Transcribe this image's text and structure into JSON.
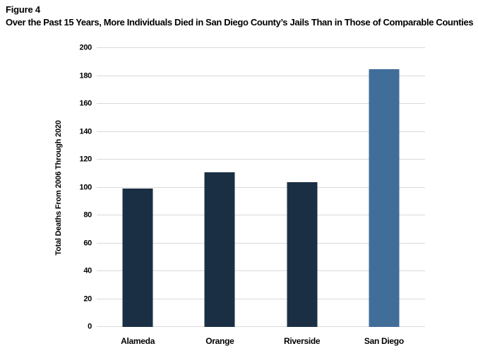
{
  "header": {
    "figure_label": "Figure 4",
    "title": "Over the Past 15 Years, More Individuals Died in San Diego County’s Jails Than in Those of Comparable Counties"
  },
  "chart_data": {
    "type": "bar",
    "categories": [
      "Alameda",
      "Orange",
      "Riverside",
      "San Diego"
    ],
    "values": [
      99,
      111,
      104,
      185
    ],
    "title": "Over the Past 15 Years, More Individuals Died in San Diego County’s Jails Than in Those of Comparable Counties",
    "xlabel": "",
    "ylabel": "Total Deaths From 2006 Through 2020",
    "ylim": [
      0,
      200
    ],
    "yticks": [
      0,
      20,
      40,
      60,
      80,
      100,
      120,
      140,
      160,
      180,
      200
    ],
    "grid": "horizontal",
    "legend": "none",
    "highlight_category": "San Diego",
    "bar_colors": [
      "#1b2f44",
      "#1b2f44",
      "#1b2f44",
      "#416d99"
    ],
    "colors": {
      "default_bar": "#1b2f44",
      "highlight_bar": "#416d99",
      "gridline": "#d9d9d9",
      "text": "#000000"
    }
  }
}
